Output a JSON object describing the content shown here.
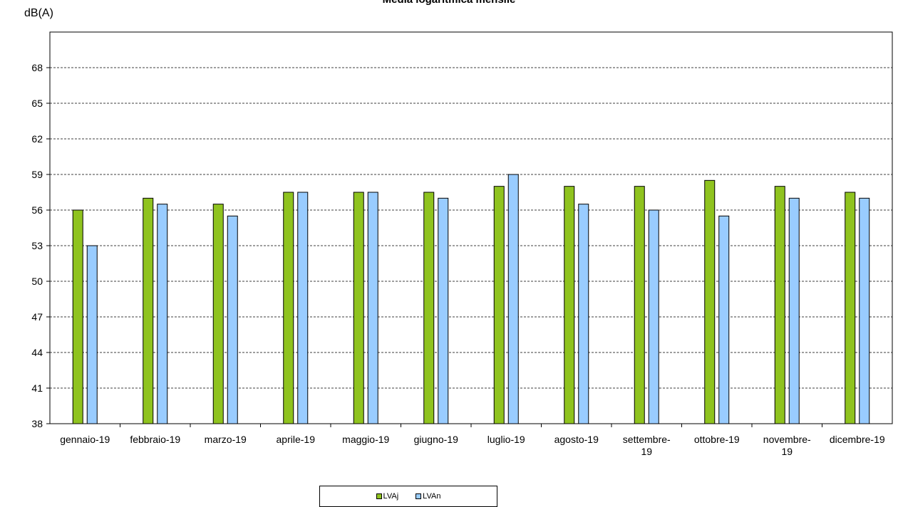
{
  "chart_data": {
    "type": "bar",
    "title": "Media logaritmica mensile",
    "ylabel": "dB(A)",
    "xlabel": "",
    "ylim": [
      38,
      71
    ],
    "yticks": [
      38,
      41,
      44,
      47,
      50,
      53,
      56,
      59,
      62,
      65,
      68
    ],
    "grid": true,
    "legend_position": "bottom",
    "categories": [
      [
        "gennaio-19"
      ],
      [
        "febbraio-19"
      ],
      [
        "marzo-19"
      ],
      [
        "aprile-19"
      ],
      [
        "maggio-19"
      ],
      [
        "giugno-19"
      ],
      [
        "luglio-19"
      ],
      [
        "agosto-19"
      ],
      [
        "settembre-",
        "19"
      ],
      [
        "ottobre-19"
      ],
      [
        "novembre-",
        "19"
      ],
      [
        "dicembre-19"
      ]
    ],
    "series": [
      {
        "name": "LVAj",
        "color": "#8fc31f",
        "values": [
          56,
          57,
          56.5,
          57.5,
          57.5,
          57.5,
          58,
          58,
          58,
          58.5,
          58,
          57.5
        ]
      },
      {
        "name": "LVAn",
        "color": "#99ccff",
        "values": [
          53,
          56.5,
          55.5,
          57.5,
          57.5,
          57,
          59,
          56.5,
          56,
          55.5,
          57,
          57
        ]
      }
    ]
  }
}
